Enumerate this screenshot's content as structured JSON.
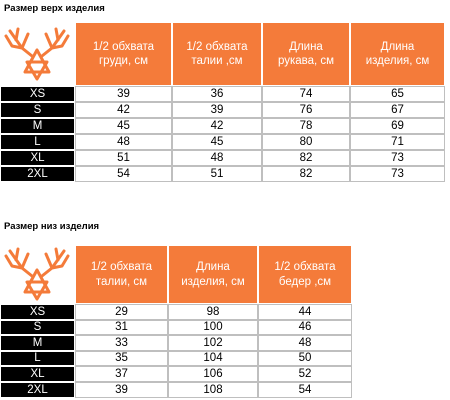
{
  "top": {
    "title": "Размер верх изделия",
    "table": {
      "header": [
        "1/2 обхвата груди, см",
        "1/2 обхвата талии ,см",
        "Длина рукава, см",
        "Длина изделия, см"
      ],
      "rows": [
        [
          "XS",
          39,
          36,
          74,
          65
        ],
        [
          "S",
          42,
          39,
          76,
          67
        ],
        [
          "M",
          45,
          42,
          78,
          69
        ],
        [
          "L",
          48,
          45,
          80,
          71
        ],
        [
          "XL",
          51,
          48,
          82,
          73
        ],
        [
          "2XL",
          54,
          51,
          82,
          73
        ]
      ]
    }
  },
  "bottom": {
    "title": "Размер низ изделия",
    "table": {
      "header": [
        "1/2 обхвата талии, см",
        "Длина изделия, см",
        "1/2 обхвата бедер ,см"
      ],
      "rows": [
        [
          "XS",
          29,
          98,
          44
        ],
        [
          "S",
          31,
          100,
          46
        ],
        [
          "M",
          33,
          102,
          48
        ],
        [
          "L",
          35,
          104,
          50
        ],
        [
          "XL",
          37,
          106,
          52
        ],
        [
          "2XL",
          39,
          108,
          54
        ]
      ]
    }
  }
}
